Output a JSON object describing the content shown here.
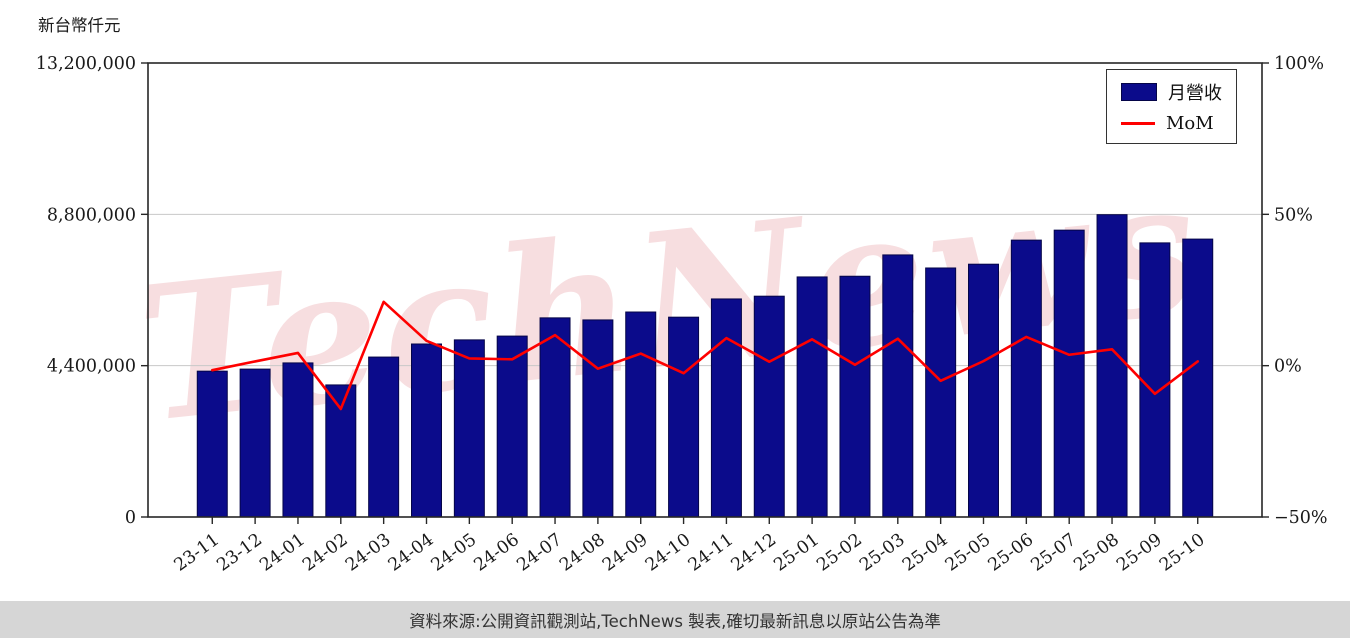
{
  "page": {
    "axis_title": "新台幣仟元",
    "watermark": "TechNews",
    "footer": "資料來源:公開資訊觀測站,TechNews 製表,確切最新訊息以原站公告為準"
  },
  "legend": {
    "bar_label": "月營收",
    "line_label": "MoM"
  },
  "chart_data": {
    "type": "bar",
    "title": "",
    "categories": [
      "23-11",
      "23-12",
      "24-01",
      "24-02",
      "24-03",
      "24-04",
      "24-05",
      "24-06",
      "24-07",
      "24-08",
      "24-09",
      "24-10",
      "24-11",
      "24-12",
      "25-01",
      "25-02",
      "25-03",
      "25-04",
      "25-05",
      "25-06",
      "25-07",
      "25-08",
      "25-09",
      "25-10"
    ],
    "series": [
      {
        "name": "月營收",
        "type": "bar",
        "axis": "left",
        "color": "#0b0b8b",
        "edge_color": "#050548",
        "values": [
          4240000,
          4300000,
          4480000,
          3840000,
          4650000,
          5030000,
          5150000,
          5260000,
          5790000,
          5730000,
          5960000,
          5810000,
          6340000,
          6420000,
          6980000,
          7000000,
          7620000,
          7240000,
          7350000,
          8050000,
          8340000,
          8790000,
          7970000,
          8080000
        ]
      },
      {
        "name": "MoM",
        "type": "line",
        "axis": "right",
        "color": "#fe0000",
        "values": [
          -1.5,
          1.4,
          4.2,
          -14.3,
          21.1,
          8.2,
          2.4,
          2.1,
          10.1,
          -1.0,
          4.0,
          -2.5,
          9.1,
          1.3,
          8.7,
          0.3,
          8.9,
          -5.0,
          1.5,
          9.5,
          3.6,
          5.4,
          -9.3,
          1.4
        ]
      }
    ],
    "left_axis": {
      "label": "新台幣仟元",
      "ticks": [
        0,
        4400000,
        8800000,
        13200000
      ],
      "range": [
        0,
        13200000
      ]
    },
    "right_axis": {
      "ticks": [
        -50,
        0,
        50,
        100
      ],
      "range": [
        -50,
        100
      ],
      "unit": "%"
    },
    "grid": true,
    "legend_position": "top-right"
  }
}
